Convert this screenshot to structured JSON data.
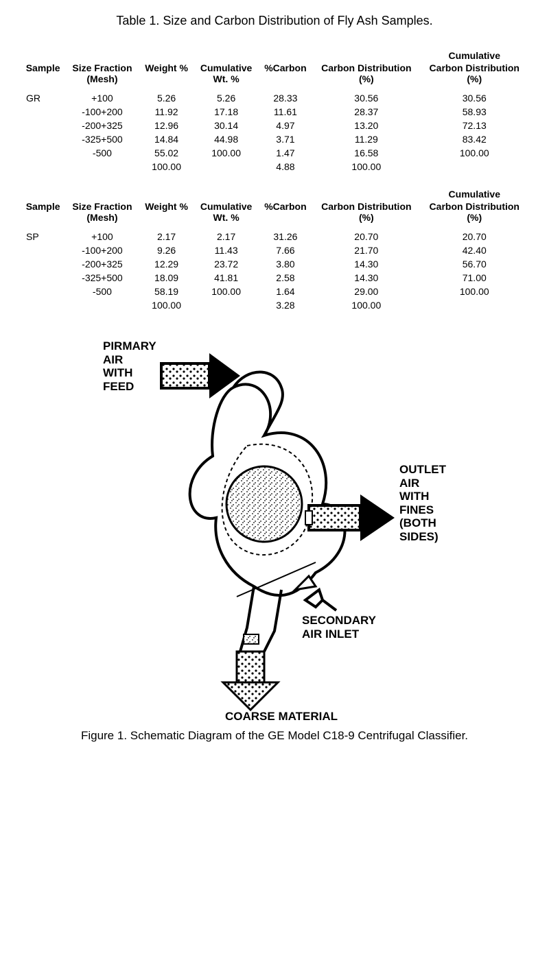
{
  "table_title": "Table 1.  Size and Carbon Distribution of Fly Ash Samples.",
  "columns": {
    "sample": "Sample",
    "size_top": "Size Fraction",
    "size_bot": "(Mesh)",
    "wt": "Weight %",
    "cwt_top": "Cumulative",
    "cwt_bot": "Wt. %",
    "carbon": "%Carbon",
    "cdist_top": "Carbon Distribution",
    "cdist_bot": "(%)",
    "ccdist_top1": "Cumulative",
    "ccdist_top2": "Carbon Distribution",
    "ccdist_bot": "(%)"
  },
  "table1": {
    "sample": "GR",
    "rows": [
      {
        "size": "+100",
        "wt": "5.26",
        "cwt": "5.26",
        "c": "28.33",
        "cd": "30.56",
        "ccd": "30.56"
      },
      {
        "size": "-100+200",
        "wt": "11.92",
        "cwt": "17.18",
        "c": "11.61",
        "cd": "28.37",
        "ccd": "58.93"
      },
      {
        "size": "-200+325",
        "wt": "12.96",
        "cwt": "30.14",
        "c": "4.97",
        "cd": "13.20",
        "ccd": "72.13"
      },
      {
        "size": "-325+500",
        "wt": "14.84",
        "cwt": "44.98",
        "c": "3.71",
        "cd": "11.29",
        "ccd": "83.42"
      },
      {
        "size": "-500",
        "wt": "55.02",
        "cwt": "100.00",
        "c": "1.47",
        "cd": "16.58",
        "ccd": "100.00"
      }
    ],
    "totals": {
      "wt": "100.00",
      "c": "4.88",
      "cd": "100.00"
    }
  },
  "table2": {
    "sample": "SP",
    "rows": [
      {
        "size": "+100",
        "wt": "2.17",
        "cwt": "2.17",
        "c": "31.26",
        "cd": "20.70",
        "ccd": "20.70"
      },
      {
        "size": "-100+200",
        "wt": "9.26",
        "cwt": "11.43",
        "c": "7.66",
        "cd": "21.70",
        "ccd": "42.40"
      },
      {
        "size": "-200+325",
        "wt": "12.29",
        "cwt": "23.72",
        "c": "3.80",
        "cd": "14.30",
        "ccd": "56.70"
      },
      {
        "size": "-325+500",
        "wt": "18.09",
        "cwt": "41.81",
        "c": "2.58",
        "cd": "14.30",
        "ccd": "71.00"
      },
      {
        "size": "-500",
        "wt": "58.19",
        "cwt": "100.00",
        "c": "1.64",
        "cd": "29.00",
        "ccd": "100.00"
      }
    ],
    "totals": {
      "wt": "100.00",
      "c": "3.28",
      "cd": "100.00"
    }
  },
  "diagram": {
    "primary_label": "PIRMARY\nAIR\nWITH\nFEED",
    "outlet_label": "OUTLET\nAIR\nWITH\nFINES\n(BOTH\nSIDES)",
    "secondary_label": "SECONDARY\nAIR INLET",
    "coarse_label": "COARSE MATERIAL",
    "caption": "Figure 1.  Schematic Diagram of the GE Model C18-9 Centrifugal Classifier.",
    "colors": {
      "stroke": "#000000",
      "bg": "#ffffff",
      "dot": "#000000"
    },
    "stroke_width_heavy": 4,
    "stroke_width_thin": 2
  }
}
